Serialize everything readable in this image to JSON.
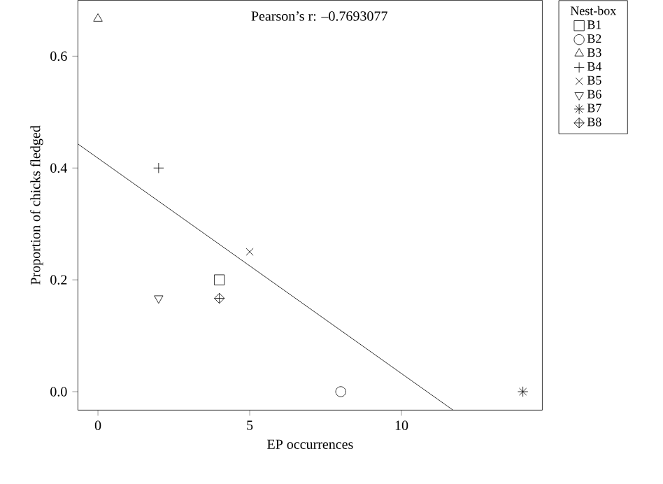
{
  "chart_data": {
    "type": "scatter",
    "xlabel": "EP occurrences",
    "ylabel": "Proportion of chicks fledged",
    "annotations": [
      "Pearson’s r: –0.7693077"
    ],
    "xlim": [
      -0.66,
      14.64
    ],
    "ylim": [
      -0.033,
      0.7
    ],
    "xticks": [
      0,
      5,
      10
    ],
    "yticks": [
      {
        "value": 0,
        "label": "0.0"
      },
      {
        "value": 0.2,
        "label": "0.2"
      },
      {
        "value": 0.4,
        "label": "0.4"
      },
      {
        "value": 0.6,
        "label": "0.6"
      }
    ],
    "legend": "right",
    "legend_title": "Nest-box",
    "grid": false,
    "series": [
      {
        "name": "B1",
        "color": "#000000",
        "marker": "square",
        "x": [
          4
        ],
        "values": [
          0.2
        ]
      },
      {
        "name": "B2",
        "color": "#000000",
        "marker": "circle",
        "x": [
          8
        ],
        "values": [
          0
        ]
      },
      {
        "name": "B3",
        "color": "#000000",
        "marker": "triangle",
        "x": [
          0
        ],
        "values": [
          0.667
        ]
      },
      {
        "name": "B4",
        "color": "#000000",
        "marker": "+",
        "x": [
          2
        ],
        "values": [
          0.4
        ]
      },
      {
        "name": "B5",
        "color": "#000000",
        "marker": "x",
        "x": [
          5
        ],
        "values": [
          0.25
        ]
      },
      {
        "name": "B6",
        "color": "#000000",
        "marker": "triangle-down",
        "x": [
          2
        ],
        "values": [
          0.167
        ]
      },
      {
        "name": "B7",
        "color": "#000000",
        "marker": "cross",
        "x": [
          14
        ],
        "values": [
          0
        ]
      },
      {
        "name": "B8",
        "color": "#000000",
        "marker": "plus",
        "x": [
          4
        ],
        "values": [
          0.167
        ]
      },
      {
        "type": "line",
        "color": "#000000",
        "marker": "none",
        "line_style": "solid",
        "x": [
          -0.66,
          11.7
        ],
        "values": [
          0.443,
          -0.033
        ]
      }
    ]
  }
}
